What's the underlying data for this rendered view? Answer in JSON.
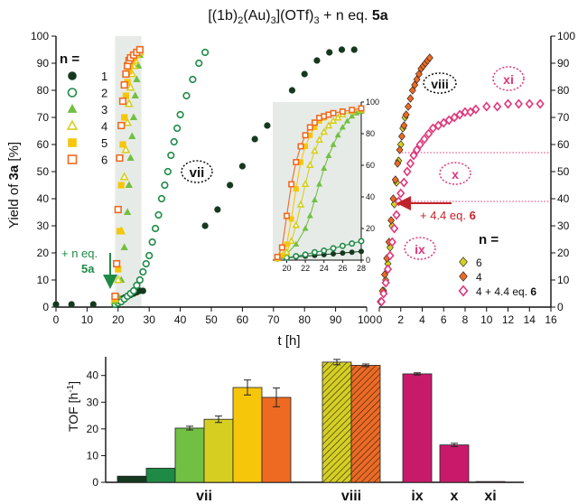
{
  "title_parts": {
    "pre": "[(1b)",
    "sub1": "2",
    "mid1": "(Au)",
    "sub2": "3",
    "mid2": "](OTf)",
    "sub3": "3",
    "post": " + n eq. ",
    "bold": "5a"
  },
  "chart_data": [
    {
      "id": "main",
      "type": "scatter",
      "xlabel": "t [h]",
      "ylabel_parts": {
        "pre": "Yield of ",
        "bold": "3a",
        "post": " [%]"
      },
      "xlim": [
        0,
        100
      ],
      "ylim": [
        0,
        100
      ],
      "xticks": [
        0,
        10,
        20,
        30,
        40,
        50,
        60,
        70,
        80,
        90,
        100
      ],
      "yticks": [
        0,
        10,
        20,
        30,
        40,
        50,
        60,
        70,
        80,
        90,
        100
      ],
      "legend_title": "n =",
      "shaded_region": [
        19,
        27.5
      ],
      "series": [
        {
          "name": "1",
          "color": "#14391f",
          "marker": "circle-filled",
          "x": [
            0,
            5,
            12,
            19,
            20,
            21,
            22,
            23,
            24,
            25,
            26,
            27,
            28,
            48,
            52,
            56,
            60,
            64,
            68,
            72,
            76,
            80,
            84,
            88,
            92,
            96
          ],
          "y": [
            1,
            1,
            1,
            2,
            2.5,
            3,
            3.5,
            4,
            4.5,
            5,
            5.5,
            6,
            6,
            30,
            36,
            45,
            52,
            62,
            67,
            73,
            80,
            86,
            91,
            94,
            95,
            95
          ]
        },
        {
          "name": "2",
          "color": "#1f8a46",
          "marker": "circle-open",
          "x": [
            19,
            20,
            21,
            22,
            23,
            24,
            25,
            26,
            27,
            28,
            29,
            30,
            31,
            32,
            33,
            34,
            35,
            36,
            37,
            38,
            39,
            40,
            42,
            44,
            46,
            48
          ],
          "y": [
            1,
            1.5,
            2,
            3,
            4,
            5,
            6,
            8,
            10,
            13,
            16,
            19,
            24,
            29,
            34,
            40,
            45,
            50,
            56,
            61,
            66,
            71,
            78,
            84,
            90,
            94
          ]
        },
        {
          "name": "3",
          "color": "#72c043",
          "marker": "triangle-filled",
          "x": [
            19,
            20,
            21,
            22,
            23,
            23.5,
            24,
            24.5,
            25,
            25.5,
            26,
            26.5,
            27
          ],
          "y": [
            2,
            4,
            10,
            22,
            35,
            45,
            55,
            63,
            70,
            78,
            84,
            89,
            93
          ]
        },
        {
          "name": "4",
          "color": "#d6cf22",
          "marker": "triangle-open",
          "x": [
            19,
            20,
            21,
            22,
            22.5,
            23,
            23.5,
            24,
            24.5,
            25,
            25.5,
            26,
            27
          ],
          "y": [
            3,
            10,
            28,
            48,
            58,
            68,
            75,
            81,
            86,
            89,
            91,
            93,
            94
          ]
        },
        {
          "name": "5",
          "color": "#f6c60a",
          "marker": "square-filled",
          "x": [
            19,
            20,
            20.5,
            21,
            21.5,
            22,
            22.5,
            23,
            23.5,
            24,
            24.5,
            25,
            25.5,
            26,
            27
          ],
          "y": [
            3,
            14,
            28,
            45,
            60,
            70,
            78,
            83,
            87,
            89,
            91,
            92,
            93,
            94,
            95
          ]
        },
        {
          "name": "6",
          "color": "#ee6a22",
          "marker": "square-open",
          "x": [
            19,
            19.5,
            20,
            20.5,
            21,
            21.5,
            22,
            22.5,
            23,
            23.5,
            24,
            25,
            26,
            27
          ],
          "y": [
            4,
            16,
            36,
            55,
            67,
            76,
            82,
            86,
            89,
            91,
            92,
            93,
            94,
            95
          ]
        }
      ],
      "annotations": {
        "vii": "vii",
        "add_label_1": "+ n eq.",
        "add_label_2": "5a"
      }
    },
    {
      "id": "inset",
      "type": "line",
      "xlim": [
        18.5,
        28
      ],
      "ylim": [
        0,
        100
      ],
      "xticks": [
        20,
        22,
        24,
        26,
        28
      ],
      "yticks": [
        0,
        20,
        40,
        60,
        80,
        100
      ],
      "series": [
        {
          "name": "1",
          "x": [
            19,
            20,
            21,
            22,
            23,
            24,
            25,
            26,
            27,
            28
          ],
          "y": [
            1,
            1.5,
            2,
            2.5,
            3,
            3.5,
            4,
            4.5,
            5,
            5.5
          ]
        },
        {
          "name": "2",
          "x": [
            19,
            20,
            21,
            22,
            23,
            24,
            25,
            26,
            27,
            28
          ],
          "y": [
            1,
            1.5,
            2.5,
            3.5,
            5,
            6,
            7.5,
            9,
            10.5,
            12
          ]
        },
        {
          "name": "3",
          "x": [
            19,
            20,
            21,
            22,
            22.5,
            23,
            23.5,
            24,
            24.5,
            25,
            25.5,
            26,
            26.5,
            27,
            27.5,
            28
          ],
          "y": [
            1,
            4,
            10,
            20,
            28,
            38,
            48,
            58,
            66,
            73,
            79,
            84,
            88,
            91,
            93,
            94
          ]
        },
        {
          "name": "4",
          "x": [
            19,
            20,
            20.5,
            21,
            21.5,
            22,
            22.5,
            23,
            23.5,
            24,
            24.5,
            25,
            25.5,
            26,
            27,
            28
          ],
          "y": [
            1,
            5,
            12,
            22,
            35,
            48,
            60,
            69,
            76,
            81,
            85,
            88,
            90,
            92,
            94,
            95
          ]
        },
        {
          "name": "5",
          "x": [
            19,
            19.5,
            20,
            20.5,
            21,
            21.5,
            22,
            22.5,
            23,
            23.5,
            24,
            24.5,
            25,
            26,
            27,
            28
          ],
          "y": [
            1,
            3,
            10,
            26,
            45,
            62,
            72,
            79,
            84,
            88,
            90,
            92,
            93,
            94,
            95,
            96
          ]
        },
        {
          "name": "6",
          "x": [
            19,
            19.5,
            20,
            20.5,
            21,
            21.5,
            22,
            22.5,
            23,
            23.5,
            24,
            24.5,
            25,
            26,
            27,
            28
          ],
          "y": [
            2,
            8,
            28,
            48,
            62,
            72,
            79,
            84,
            87,
            90,
            91,
            92,
            93,
            94,
            95,
            96
          ]
        }
      ]
    },
    {
      "id": "right",
      "type": "scatter",
      "xlim": [
        0,
        16
      ],
      "ylim": [
        0,
        100
      ],
      "xticks": [
        0,
        2,
        4,
        6,
        8,
        10,
        12,
        14,
        16
      ],
      "yticks": [
        0,
        10,
        20,
        30,
        40,
        50,
        60,
        70,
        80,
        90,
        100
      ],
      "legend_title": "n =",
      "series": [
        {
          "name": "6",
          "color": "#d6cf22",
          "marker": "diamond-filled",
          "x": [
            0.2,
            0.4,
            0.6,
            0.8,
            1.0,
            1.2,
            1.4,
            1.6,
            1.8,
            2.0,
            2.2,
            2.4
          ],
          "y": [
            2,
            6,
            10,
            16,
            22,
            30,
            38,
            46,
            54,
            60,
            66,
            70
          ]
        },
        {
          "name": "4",
          "color": "#ee6a22",
          "marker": "diamond-filled",
          "x": [
            0.1,
            0.3,
            0.5,
            0.7,
            0.9,
            1.1,
            1.3,
            1.5,
            1.7,
            1.9,
            2.1,
            2.3,
            2.5,
            2.7,
            2.9,
            3.1,
            3.3,
            3.5,
            3.7,
            3.9,
            4.1,
            4.3,
            4.5,
            4.7
          ],
          "y": [
            2,
            6,
            12,
            18,
            24,
            32,
            40,
            47,
            53,
            58,
            63,
            67,
            71,
            74,
            77,
            80,
            82,
            84,
            86,
            88,
            89,
            90,
            91,
            92
          ]
        },
        {
          "name_parts": {
            "pre": "4 + 4.4 eq. ",
            "bold": "6"
          },
          "color": "#e0357a",
          "marker": "diamond-open",
          "x": [
            0.2,
            0.4,
            0.6,
            0.8,
            1.0,
            1.2,
            1.4,
            1.6,
            1.8,
            2.0,
            2.3,
            2.6,
            2.9,
            3.2,
            3.5,
            3.8,
            4.2,
            4.6,
            5.0,
            5.5,
            6.0,
            6.5,
            7.0,
            7.5,
            8.0,
            8.5,
            9.0,
            10.0,
            11.0,
            12.0,
            13.0,
            14.0,
            15.0
          ],
          "y": [
            2,
            5,
            9,
            14,
            19,
            24,
            29,
            34,
            39,
            42,
            46,
            50,
            53,
            56,
            58,
            60,
            62,
            64,
            66,
            67,
            68,
            69,
            70,
            71,
            72,
            72,
            73,
            74,
            74,
            75,
            75,
            75,
            75
          ]
        }
      ],
      "annotations": {
        "viii": "viii",
        "ix": "ix",
        "x": "x",
        "xi": "xi",
        "addition_pre": "+ 4.4 eq. ",
        "addition_bold": "6"
      },
      "reference_lines_y": [
        57,
        39
      ]
    },
    {
      "id": "tof",
      "type": "bar",
      "ylabel": "TOF [h",
      "ylabel_sup": "-1",
      "ylabel_close": "]",
      "ylim": [
        0,
        47
      ],
      "yticks": [
        0,
        10,
        20,
        30,
        40
      ],
      "groups": [
        {
          "label": "vii",
          "bars": [
            {
              "value": 2.3,
              "err": 0,
              "color": "#14391f",
              "hatch": false
            },
            {
              "value": 5.3,
              "err": 0,
              "color": "#1f8a46",
              "hatch": false
            },
            {
              "value": 20.3,
              "err": 0.7,
              "color": "#72c043",
              "hatch": false
            },
            {
              "value": 23.6,
              "err": 1.2,
              "color": "#d6cf22",
              "hatch": false
            },
            {
              "value": 35.5,
              "err": 2.8,
              "color": "#f6c60a",
              "hatch": false
            },
            {
              "value": 31.8,
              "err": 3.5,
              "color": "#ee6a22",
              "hatch": false
            }
          ]
        },
        {
          "label": "viii",
          "bars": [
            {
              "value": 45.0,
              "err": 1.0,
              "color": "#d6cf22",
              "hatch": true
            },
            {
              "value": 43.8,
              "err": 0.5,
              "color": "#ee6a22",
              "hatch": true
            }
          ]
        },
        {
          "label": "ix",
          "bars": [
            {
              "value": 40.6,
              "err": 0.4,
              "color": "#c81a6a",
              "hatch": false
            }
          ]
        },
        {
          "label": "x",
          "bars": [
            {
              "value": 14.0,
              "err": 0.6,
              "color": "#c81a6a",
              "hatch": false
            }
          ]
        },
        {
          "label": "xi",
          "bars": [
            {
              "value": 0.3,
              "err": 0,
              "color": "#c81a6a",
              "hatch": false
            }
          ]
        }
      ]
    }
  ]
}
